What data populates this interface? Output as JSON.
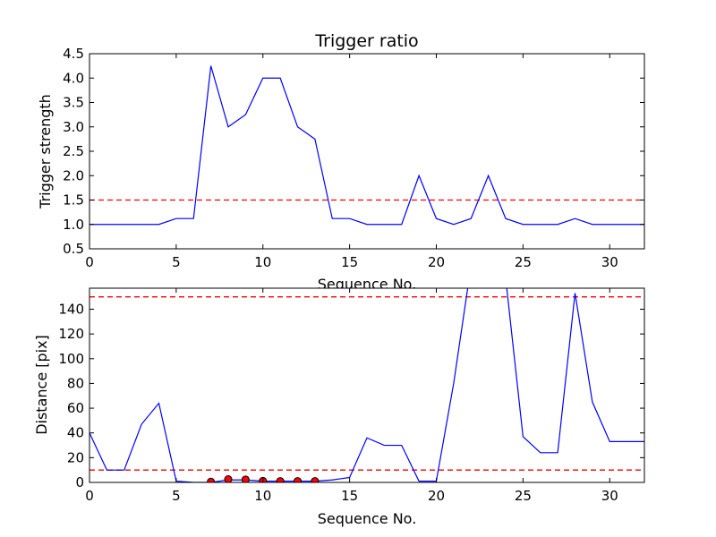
{
  "chart_data": [
    {
      "type": "line",
      "title": "Trigger ratio",
      "xlabel": "Sequence No.",
      "ylabel": "Trigger strength",
      "xlim": [
        0,
        32
      ],
      "ylim": [
        0.5,
        4.5
      ],
      "xticks": [
        "0",
        "5",
        "10",
        "15",
        "20",
        "25",
        "30"
      ],
      "yticks": [
        "0.5",
        "1.0",
        "1.5",
        "2.0",
        "2.5",
        "3.0",
        "3.5",
        "4.0",
        "4.5"
      ],
      "grid": false,
      "colors": {
        "line": "#0000ff",
        "threshold": "#ff0000"
      },
      "threshold_lines": [
        1.5
      ],
      "series": [
        {
          "x": [
            0,
            1,
            2,
            3,
            4,
            5,
            6,
            7,
            8,
            9,
            10,
            11,
            12,
            13,
            14,
            15,
            16,
            17,
            18,
            19,
            20,
            21,
            22,
            23,
            24,
            25,
            26,
            27,
            28,
            29,
            30,
            31,
            32
          ],
          "values": [
            1.0,
            1.0,
            1.0,
            1.0,
            1.0,
            1.12,
            1.12,
            4.25,
            3.0,
            3.25,
            4.0,
            4.0,
            3.0,
            2.75,
            1.12,
            1.12,
            1.0,
            1.0,
            1.0,
            2.0,
            1.12,
            1.0,
            1.12,
            2.0,
            1.12,
            1.0,
            1.0,
            1.0,
            1.12,
            1.0,
            1.0,
            1.0,
            1.0
          ]
        }
      ]
    },
    {
      "type": "line",
      "title": "",
      "xlabel": "Sequence No.",
      "ylabel": "Distance [pix]",
      "xlim": [
        0,
        32
      ],
      "ylim": [
        0,
        157
      ],
      "xticks": [
        "0",
        "5",
        "10",
        "15",
        "20",
        "25",
        "30"
      ],
      "yticks": [
        "0",
        "20",
        "40",
        "60",
        "80",
        "100",
        "120",
        "140"
      ],
      "grid": false,
      "colors": {
        "line": "#0000ff",
        "threshold": "#ff0000",
        "markers": "#ff0000"
      },
      "threshold_lines": [
        10,
        150
      ],
      "series": [
        {
          "x": [
            0,
            1,
            2,
            3,
            4,
            5,
            6,
            7,
            8,
            9,
            10,
            11,
            12,
            13,
            14,
            15,
            16,
            17,
            18,
            19,
            20,
            21,
            22,
            23,
            24,
            25,
            26,
            27,
            28,
            29,
            30,
            31,
            32
          ],
          "values": [
            40,
            10,
            10,
            47,
            64,
            1,
            0,
            0,
            2,
            2,
            1,
            1,
            1,
            1,
            2,
            4,
            36,
            30,
            30,
            1,
            1,
            80,
            175,
            200,
            165,
            37,
            24,
            24,
            153,
            65,
            33,
            33,
            33
          ]
        }
      ],
      "markers": {
        "x": [
          7,
          8,
          9,
          10,
          11,
          12,
          13
        ],
        "values": [
          0.5,
          2.5,
          2.3,
          1.2,
          1.0,
          1.0,
          1.0
        ]
      }
    }
  ]
}
